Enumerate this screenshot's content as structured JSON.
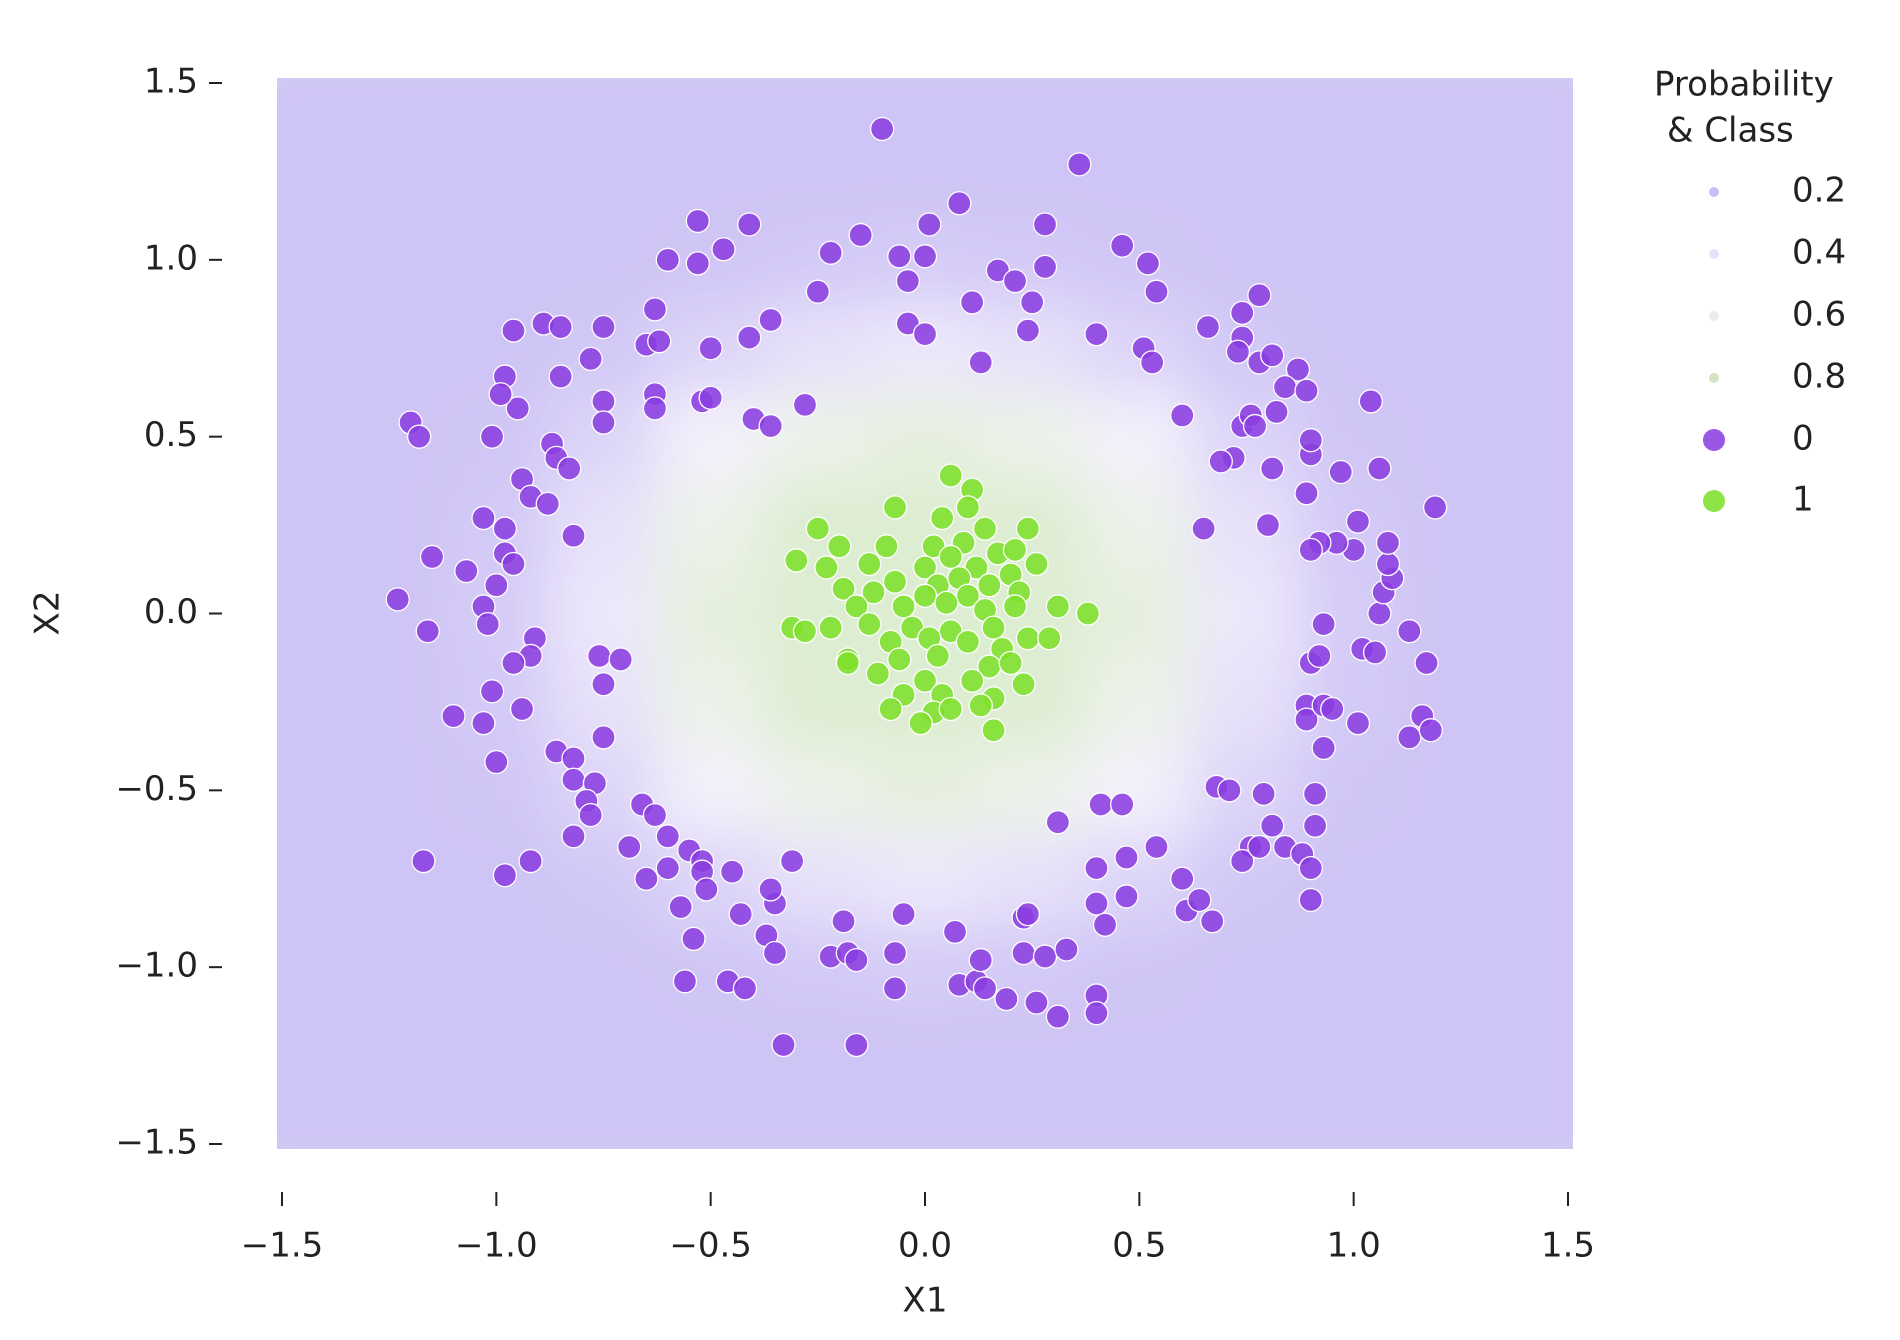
{
  "chart_data": {
    "type": "scatter",
    "xlabel": "X1",
    "ylabel": "X2",
    "xlim": [
      -1.5,
      1.5
    ],
    "ylim": [
      -1.5,
      1.5
    ],
    "xticks": [
      {
        "value": -1.5,
        "label": "−1.5"
      },
      {
        "value": -1.0,
        "label": "−1.0"
      },
      {
        "value": -0.5,
        "label": "−0.5"
      },
      {
        "value": 0,
        "label": "0.0"
      },
      0.5,
      {
        "value": 1.0,
        "label": "1.0"
      },
      1.5
    ],
    "yticks": [
      {
        "value": -1.5,
        "label": "−1.5"
      },
      {
        "value": -1.0,
        "label": "−1.0"
      },
      {
        "value": -0.5,
        "label": "−0.5"
      },
      {
        "value": 0,
        "label": "0.0"
      },
      0.5,
      {
        "value": 1.0,
        "label": "1.0"
      },
      1.5
    ],
    "cmap": [
      "#ad9bef",
      "#f6f2fc",
      "#b9dc9c"
    ],
    "probability": {
      "x": [
        -1.5,
        -1.25,
        -1.0,
        -0.75,
        -0.5,
        -0.25,
        0,
        0.25,
        0.5,
        0.75,
        1.0,
        1.25,
        1.5
      ],
      "y": [
        -1.5,
        -1.25,
        -1.0,
        -0.75,
        -0.5,
        -0.25,
        0,
        0.25,
        0.5,
        0.75,
        1.0,
        1.25,
        1.5
      ],
      "z": [
        [
          0.05,
          0.05,
          0.05,
          0.05,
          0.05,
          0.05,
          0.05,
          0.05,
          0.05,
          0.05,
          0.05,
          0.05,
          0.05
        ],
        [
          0.05,
          0.05,
          0.05,
          0.05,
          0.05,
          0.05,
          0.05,
          0.05,
          0.05,
          0.05,
          0.05,
          0.05,
          0.05
        ],
        [
          0.05,
          0.05,
          0.05,
          0.05,
          0.07,
          0.1,
          0.12,
          0.1,
          0.07,
          0.05,
          0.05,
          0.05,
          0.05
        ],
        [
          0.05,
          0.05,
          0.05,
          0.09,
          0.2,
          0.31,
          0.37,
          0.31,
          0.2,
          0.09,
          0.05,
          0.05,
          0.05
        ],
        [
          0.05,
          0.05,
          0.07,
          0.2,
          0.44,
          0.66,
          0.75,
          0.66,
          0.44,
          0.2,
          0.07,
          0.05,
          0.05
        ],
        [
          0.05,
          0.05,
          0.1,
          0.31,
          0.66,
          0.85,
          0.85,
          0.85,
          0.66,
          0.31,
          0.1,
          0.05,
          0.05
        ],
        [
          0.05,
          0.05,
          0.12,
          0.37,
          0.75,
          0.85,
          0.85,
          0.85,
          0.75,
          0.37,
          0.12,
          0.05,
          0.05
        ],
        [
          0.05,
          0.05,
          0.1,
          0.31,
          0.66,
          0.85,
          0.85,
          0.85,
          0.66,
          0.31,
          0.1,
          0.05,
          0.05
        ],
        [
          0.05,
          0.05,
          0.07,
          0.2,
          0.44,
          0.66,
          0.75,
          0.66,
          0.44,
          0.2,
          0.07,
          0.05,
          0.05
        ],
        [
          0.05,
          0.05,
          0.05,
          0.09,
          0.2,
          0.31,
          0.37,
          0.31,
          0.2,
          0.09,
          0.05,
          0.05,
          0.05
        ],
        [
          0.05,
          0.05,
          0.05,
          0.05,
          0.07,
          0.1,
          0.12,
          0.1,
          0.07,
          0.05,
          0.05,
          0.05,
          0.05
        ],
        [
          0.05,
          0.05,
          0.05,
          0.05,
          0.05,
          0.05,
          0.05,
          0.05,
          0.05,
          0.05,
          0.05,
          0.05,
          0.05
        ],
        [
          0.05,
          0.05,
          0.05,
          0.05,
          0.05,
          0.05,
          0.05,
          0.05,
          0.05,
          0.05,
          0.05,
          0.05,
          0.05
        ]
      ]
    },
    "legend": {
      "title": [
        "Probability",
        "& Class"
      ],
      "probability_values": [
        0.2,
        0.4,
        0.6,
        0.8
      ]
    },
    "series": [
      {
        "name": "0",
        "color": "#8b3ee0",
        "x": [
          -0.1,
          0.36,
          -0.53,
          -0.41,
          -0.15,
          0.08,
          0.01,
          0.28,
          -0.22,
          -0.06,
          0.0,
          -0.47,
          -0.6,
          -0.53,
          0.17,
          0.21,
          0.28,
          0.46,
          0.52,
          0.54,
          -0.04,
          -0.25,
          -0.63,
          0.25,
          0.11,
          -0.36,
          -0.04,
          0.0,
          0.24,
          0.4,
          0.13,
          -0.96,
          -0.89,
          -0.85,
          -0.75,
          -0.65,
          -0.62,
          -0.41,
          -0.5,
          0.51,
          0.53,
          0.66,
          0.74,
          0.78,
          0.74,
          0.73,
          0.78,
          0.87,
          0.81,
          -0.78,
          -0.98,
          -0.85,
          -0.75,
          -0.63,
          -0.63,
          -0.52,
          -0.5,
          -0.4,
          -0.36,
          -0.28,
          -0.95,
          -0.99,
          -0.75,
          -1.2,
          -1.18,
          -1.01,
          -0.87,
          -0.86,
          -0.83,
          -0.94,
          -0.92,
          -0.88,
          -1.03,
          -0.98,
          -0.82,
          -1.15,
          -0.98,
          -0.96,
          -1.07,
          -1.0,
          -1.23,
          -1.03,
          -1.02,
          -1.16,
          -0.91,
          -0.92,
          -0.96,
          -0.76,
          -0.71,
          -1.01,
          -0.75,
          -1.1,
          -1.03,
          -0.94,
          -0.75,
          -0.86,
          -0.82,
          -1.0,
          -0.82,
          -0.77,
          -0.79,
          -0.78,
          -0.66,
          -0.63,
          -0.82,
          -0.69,
          -1.17,
          -0.98,
          -0.92,
          -0.6,
          -0.55,
          -0.52,
          -0.65,
          -0.6,
          -0.52,
          -0.57,
          -0.51,
          -0.45,
          -0.43,
          -0.35,
          -0.36,
          -0.31,
          -0.54,
          -0.37,
          -0.35,
          -0.56,
          -0.46,
          -0.42,
          -0.33,
          -0.19,
          -0.22,
          -0.18,
          -0.16,
          -0.07,
          -0.05,
          -0.07,
          -0.16,
          0.07,
          0.08,
          0.12,
          0.13,
          0.14,
          0.19,
          0.23,
          0.24,
          0.23,
          0.26,
          0.28,
          0.31,
          0.33,
          0.31,
          0.41,
          0.46,
          0.4,
          0.47,
          0.54,
          0.4,
          0.42,
          0.47,
          0.4,
          0.4,
          0.6,
          0.61,
          0.64,
          0.67,
          0.68,
          0.71,
          0.76,
          0.74,
          0.78,
          0.79,
          0.81,
          0.84,
          0.88,
          0.9,
          0.9,
          0.91,
          0.91,
          0.89,
          0.89,
          0.93,
          0.95,
          0.93,
          0.9,
          0.92,
          0.93,
          1.01,
          1.02,
          1.05,
          1.06,
          1.13,
          1.13,
          1.16,
          1.17,
          1.18,
          1.07,
          1.09,
          1.08,
          1.08,
          1.0,
          1.01,
          0.96,
          0.92,
          0.9,
          0.8,
          1.19,
          0.97,
          1.06,
          1.04,
          0.9,
          0.9,
          0.89,
          0.81,
          0.72,
          0.69,
          0.65,
          0.74,
          0.76,
          0.77,
          0.82,
          0.84,
          0.89,
          0.6
        ],
        "y": [
          1.37,
          1.27,
          1.11,
          1.1,
          1.07,
          1.16,
          1.1,
          1.1,
          1.02,
          1.01,
          1.01,
          1.03,
          1.0,
          0.99,
          0.97,
          0.94,
          0.98,
          1.04,
          0.99,
          0.91,
          0.94,
          0.91,
          0.86,
          0.88,
          0.88,
          0.83,
          0.82,
          0.79,
          0.8,
          0.79,
          0.71,
          0.8,
          0.82,
          0.81,
          0.81,
          0.76,
          0.77,
          0.78,
          0.75,
          0.75,
          0.71,
          0.81,
          0.78,
          0.9,
          0.85,
          0.74,
          0.71,
          0.69,
          0.73,
          0.72,
          0.67,
          0.67,
          0.6,
          0.62,
          0.58,
          0.6,
          0.61,
          0.55,
          0.53,
          0.59,
          0.58,
          0.62,
          0.54,
          0.54,
          0.5,
          0.5,
          0.48,
          0.44,
          0.41,
          0.38,
          0.33,
          0.31,
          0.27,
          0.24,
          0.22,
          0.16,
          0.17,
          0.14,
          0.12,
          0.08,
          0.04,
          0.02,
          -0.03,
          -0.05,
          -0.07,
          -0.12,
          -0.14,
          -0.12,
          -0.13,
          -0.22,
          -0.2,
          -0.29,
          -0.31,
          -0.27,
          -0.35,
          -0.39,
          -0.41,
          -0.42,
          -0.47,
          -0.48,
          -0.53,
          -0.57,
          -0.54,
          -0.57,
          -0.63,
          -0.66,
          -0.7,
          -0.74,
          -0.7,
          -0.63,
          -0.67,
          -0.7,
          -0.75,
          -0.72,
          -0.73,
          -0.83,
          -0.78,
          -0.73,
          -0.85,
          -0.82,
          -0.78,
          -0.7,
          -0.92,
          -0.91,
          -0.96,
          -1.04,
          -1.04,
          -1.06,
          -1.22,
          -0.87,
          -0.97,
          -0.96,
          -0.98,
          -0.96,
          -0.85,
          -1.06,
          -1.22,
          -0.9,
          -1.05,
          -1.04,
          -0.98,
          -1.06,
          -1.09,
          -0.86,
          -0.85,
          -0.96,
          -1.1,
          -0.97,
          -1.14,
          -0.95,
          -0.59,
          -0.54,
          -0.54,
          -0.72,
          -0.69,
          -0.66,
          -0.82,
          -0.88,
          -0.8,
          -1.08,
          -1.13,
          -0.75,
          -0.84,
          -0.81,
          -0.87,
          -0.49,
          -0.5,
          -0.66,
          -0.7,
          -0.66,
          -0.51,
          -0.6,
          -0.66,
          -0.68,
          -0.72,
          -0.81,
          -0.6,
          -0.51,
          -0.26,
          -0.3,
          -0.26,
          -0.27,
          -0.38,
          -0.14,
          -0.12,
          -0.03,
          -0.31,
          -0.1,
          -0.11,
          0.0,
          -0.05,
          -0.35,
          -0.29,
          -0.14,
          -0.33,
          0.06,
          0.1,
          0.14,
          0.2,
          0.18,
          0.26,
          0.2,
          0.2,
          0.18,
          0.25,
          0.3,
          0.4,
          0.41,
          0.6,
          0.45,
          0.49,
          0.34,
          0.41,
          0.44,
          0.43,
          0.24,
          0.53,
          0.56,
          0.53,
          0.57,
          0.64,
          0.63,
          0.56
        ]
      },
      {
        "name": "1",
        "color": "#7de02a",
        "x": [
          0.06,
          0.11,
          -0.07,
          0.04,
          0.1,
          -0.25,
          0.24,
          0.14,
          -0.2,
          -0.09,
          0.02,
          0.09,
          0.17,
          0.21,
          -0.3,
          0.26,
          -0.23,
          -0.13,
          0.0,
          0.06,
          0.12,
          0.2,
          -0.19,
          -0.07,
          0.03,
          0.08,
          0.15,
          -0.12,
          0.0,
          0.1,
          0.22,
          -0.16,
          -0.05,
          0.05,
          0.14,
          0.21,
          0.31,
          0.38,
          -0.31,
          -0.28,
          -0.22,
          -0.13,
          -0.03,
          0.06,
          0.16,
          0.24,
          0.29,
          -0.18,
          -0.08,
          0.01,
          0.1,
          0.18,
          -0.18,
          -0.06,
          0.03,
          0.15,
          0.2,
          -0.11,
          0.0,
          0.11,
          0.23,
          -0.05,
          0.04,
          0.16,
          -0.08,
          0.02,
          0.06,
          0.13,
          -0.01,
          0.16
        ],
        "y": [
          0.39,
          0.35,
          0.3,
          0.27,
          0.3,
          0.24,
          0.24,
          0.24,
          0.19,
          0.19,
          0.19,
          0.2,
          0.17,
          0.18,
          0.15,
          0.14,
          0.13,
          0.14,
          0.13,
          0.16,
          0.13,
          0.11,
          0.07,
          0.09,
          0.08,
          0.1,
          0.08,
          0.06,
          0.05,
          0.05,
          0.06,
          0.02,
          0.02,
          0.03,
          0.01,
          0.02,
          0.02,
          0.0,
          -0.04,
          -0.05,
          -0.04,
          -0.03,
          -0.04,
          -0.05,
          -0.04,
          -0.07,
          -0.07,
          -0.13,
          -0.08,
          -0.07,
          -0.08,
          -0.1,
          -0.14,
          -0.13,
          -0.12,
          -0.15,
          -0.14,
          -0.17,
          -0.19,
          -0.19,
          -0.2,
          -0.23,
          -0.23,
          -0.24,
          -0.27,
          -0.28,
          -0.27,
          -0.26,
          -0.31,
          -0.33
        ]
      }
    ]
  }
}
